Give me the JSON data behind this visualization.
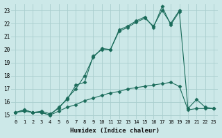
{
  "xlabel": "Humidex (Indice chaleur)",
  "bg_color": "#cce8e8",
  "grid_color": "#aacece",
  "line_color": "#1a6b5a",
  "xlim_min": -0.5,
  "xlim_max": 23.5,
  "ylim_min": 14.7,
  "ylim_max": 23.5,
  "yticks": [
    15,
    16,
    17,
    18,
    19,
    20,
    21,
    22,
    23
  ],
  "xticks": [
    0,
    1,
    2,
    3,
    4,
    5,
    6,
    7,
    8,
    9,
    10,
    11,
    12,
    13,
    14,
    15,
    16,
    17,
    18,
    19,
    20,
    21,
    22,
    23
  ],
  "series1_x": [
    0,
    1,
    2,
    3,
    4,
    5,
    6,
    7,
    8,
    9,
    10,
    11,
    12,
    13,
    14,
    15,
    16,
    17,
    18,
    19,
    20,
    21,
    22,
    23
  ],
  "series1_y": [
    15.2,
    15.4,
    15.2,
    15.2,
    15.0,
    15.6,
    16.2,
    17.3,
    17.5,
    19.5,
    20.0,
    20.0,
    21.5,
    21.8,
    22.2,
    22.5,
    21.7,
    23.3,
    21.9,
    22.9,
    15.5,
    16.2,
    15.6,
    15.5
  ],
  "series2_x": [
    0,
    1,
    2,
    3,
    4,
    5,
    6,
    7,
    8,
    9,
    10,
    11,
    12,
    13,
    14,
    15,
    16,
    17,
    18,
    19,
    20,
    21,
    22,
    23
  ],
  "series2_y": [
    15.2,
    15.3,
    15.2,
    15.2,
    15.0,
    15.3,
    15.6,
    15.8,
    16.1,
    16.3,
    16.5,
    16.7,
    16.8,
    17.0,
    17.1,
    17.2,
    17.3,
    17.4,
    17.5,
    17.2,
    15.4,
    15.5,
    15.5,
    15.5
  ],
  "series3_x": [
    0,
    1,
    2,
    3,
    4,
    5,
    6,
    7,
    8,
    9,
    10,
    11,
    12,
    13,
    14,
    15,
    16,
    17,
    18,
    19
  ],
  "series3_y": [
    15.2,
    15.4,
    15.2,
    15.3,
    15.1,
    15.5,
    16.3,
    17.0,
    18.0,
    19.4,
    20.1,
    20.0,
    21.4,
    21.7,
    22.1,
    22.4,
    21.8,
    23.0,
    22.0,
    23.0
  ]
}
